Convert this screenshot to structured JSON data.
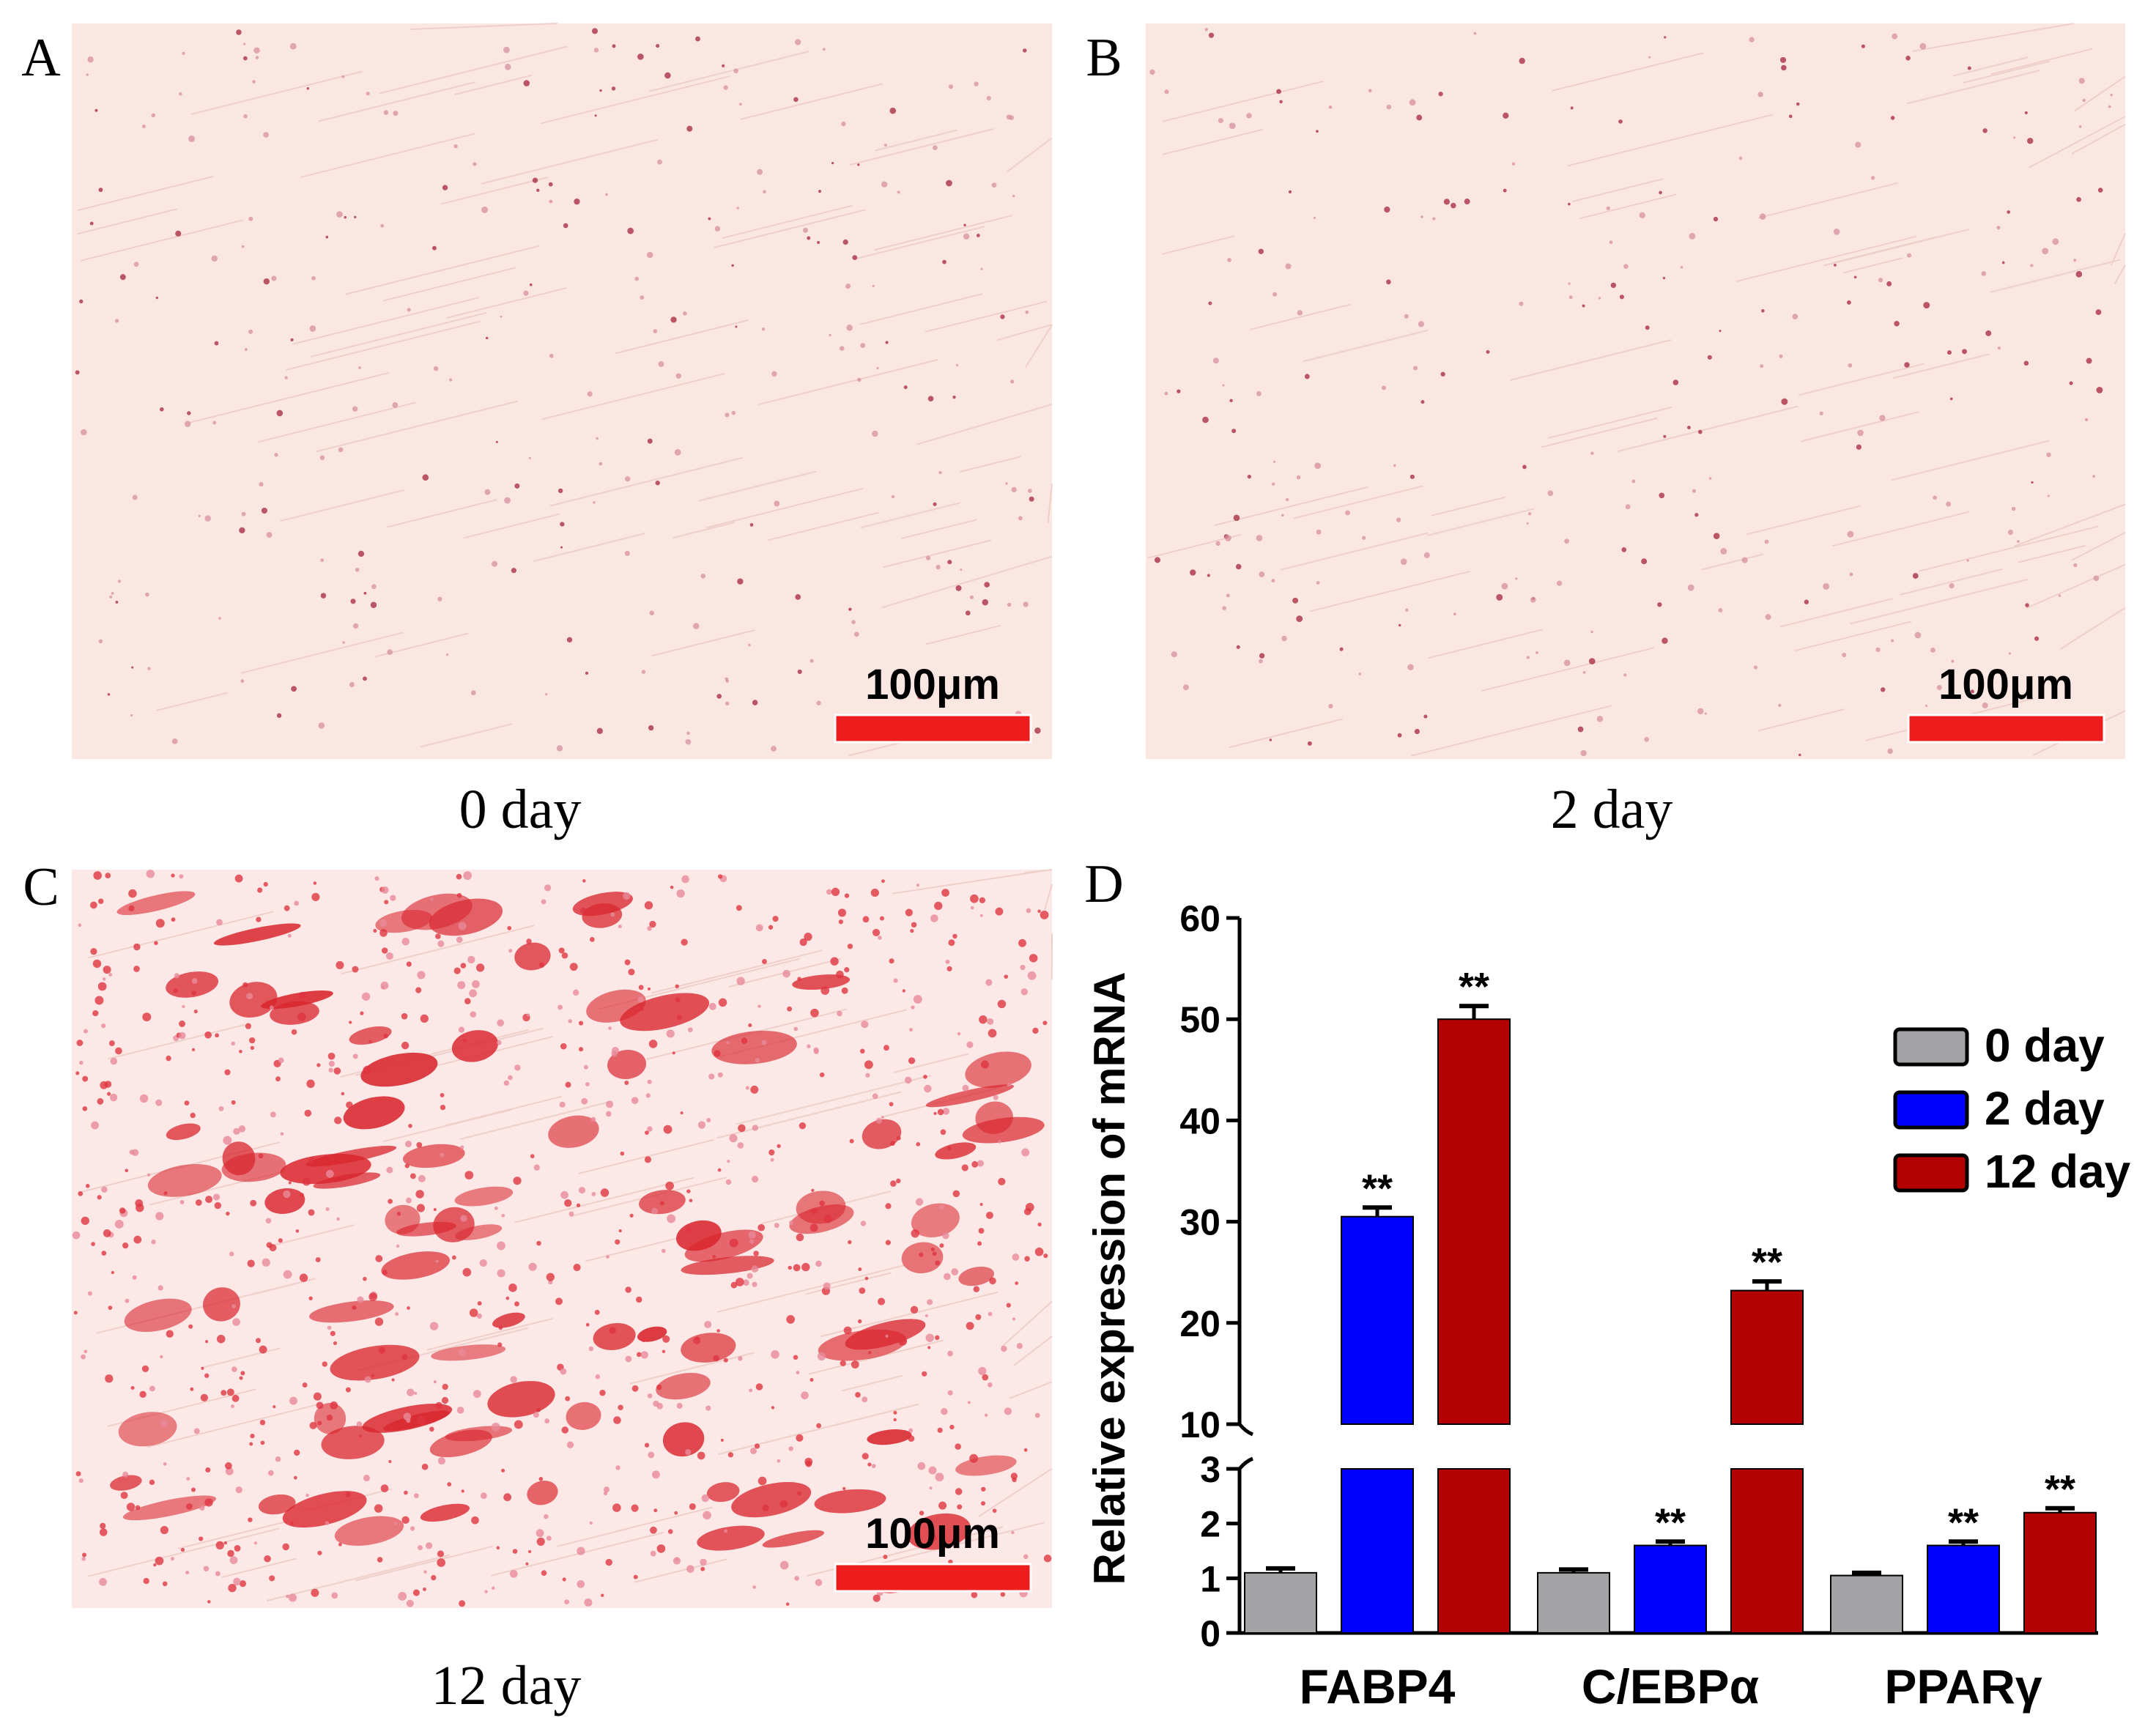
{
  "panels": [
    {
      "label": "A",
      "caption": "0 day",
      "scale_bar": "100μm"
    },
    {
      "label": "B",
      "caption": "2 day",
      "scale_bar": "100μm"
    },
    {
      "label": "C",
      "caption": "12 day",
      "scale_bar": "100μm"
    }
  ],
  "chart_data": {
    "type": "bar",
    "panel_label": "D",
    "y_label": "Relative expression of  mRNA",
    "categories": [
      "FABP4",
      "C/EBPα",
      "PPARγ"
    ],
    "series": [
      {
        "name": "0 day",
        "color": "#a3a3a6",
        "values": [
          1.1,
          1.1,
          1.05
        ],
        "errors": [
          0.08,
          0.06,
          0.05
        ],
        "significance": [
          null,
          null,
          null
        ]
      },
      {
        "name": "2 day",
        "color": "#0000ff",
        "values": [
          30.5,
          1.6,
          1.6
        ],
        "errors": [
          0.9,
          0.07,
          0.07
        ],
        "significance": [
          "**",
          "**",
          "**"
        ]
      },
      {
        "name": "12 day",
        "color": "#b30000",
        "values": [
          50,
          23.2,
          2.2
        ],
        "errors": [
          1.3,
          0.9,
          0.08
        ],
        "significance": [
          "**",
          "**",
          "**"
        ]
      }
    ],
    "y_segments": [
      {
        "ylim": [
          0,
          3
        ],
        "yticks": [
          0,
          1,
          2,
          3
        ]
      },
      {
        "ylim": [
          10,
          60
        ],
        "yticks": [
          10,
          20,
          30,
          40,
          50,
          60
        ]
      }
    ],
    "legend": "upper right"
  }
}
